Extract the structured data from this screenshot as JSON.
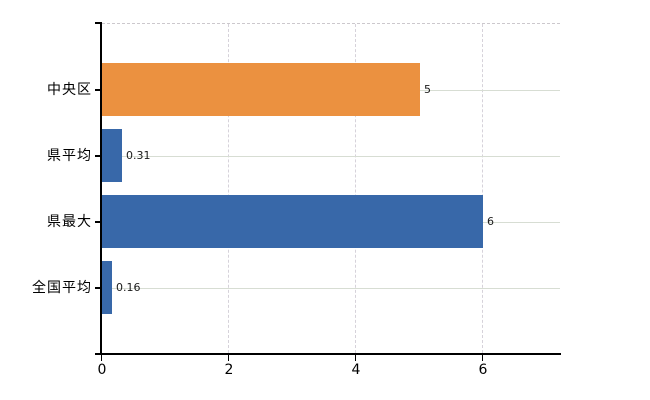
{
  "chart_data": {
    "type": "bar",
    "orientation": "horizontal",
    "categories": [
      "中央区",
      "県平均",
      "県最大",
      "全国平均"
    ],
    "values": [
      5,
      0.31,
      6,
      0.16
    ],
    "value_labels": [
      "5",
      "0.31",
      "6",
      "0.16"
    ],
    "bar_colors": [
      "#eb9140",
      "#3868a9",
      "#3868a9",
      "#3868a9"
    ],
    "x_ticks": [
      0,
      2,
      4,
      6
    ],
    "x_tick_labels": [
      "0",
      "2",
      "4",
      "6"
    ],
    "xlim": [
      0,
      7.2
    ],
    "grid": true,
    "legend": "none"
  },
  "colors": {
    "orange_bar": "#eb9140",
    "blue_bar": "#3868a9",
    "grid_vertical": "#d6d2da",
    "grid_horizontal": "#d7ddd3",
    "plot_top_border": "#ccc8cd",
    "axis": "#000000",
    "text": "#000000",
    "value_text": "#1a1a1a",
    "background": "#ffffff"
  }
}
